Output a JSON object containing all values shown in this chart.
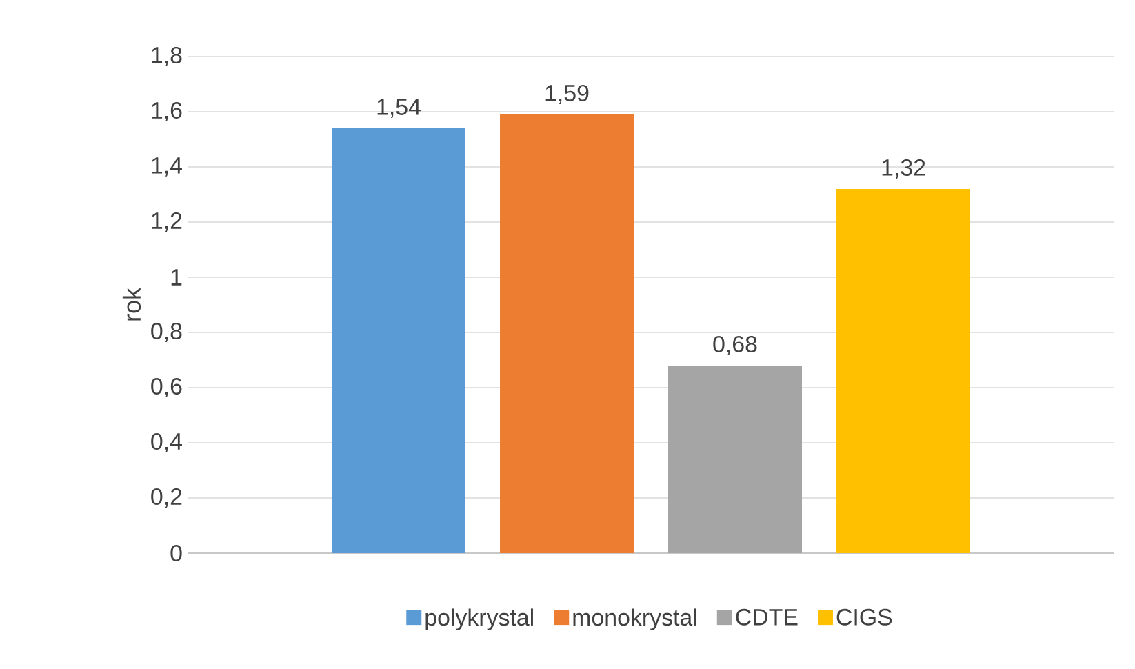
{
  "chart_data": {
    "type": "bar",
    "ylabel": "rok",
    "categories": [
      null
    ],
    "series": [
      {
        "name": "polykrystal",
        "color": "#5b9bd5",
        "values": [
          1.54
        ],
        "value_labels": [
          "1,54"
        ]
      },
      {
        "name": "monokrystal",
        "color": "#ed7d31",
        "values": [
          1.59
        ],
        "value_labels": [
          "1,59"
        ]
      },
      {
        "name": "CDTE",
        "color": "#a5a5a5",
        "values": [
          0.68
        ],
        "value_labels": [
          "0,68"
        ]
      },
      {
        "name": "CIGS",
        "color": "#ffc000",
        "values": [
          1.32
        ],
        "value_labels": [
          "1,32"
        ]
      }
    ],
    "ylim": [
      0,
      1.8
    ],
    "yticks": [
      0,
      {
        "value": 0.2,
        "label": "0,2"
      },
      {
        "value": 0.4,
        "label": "0,4"
      },
      {
        "value": 0.6,
        "label": "0,6"
      },
      {
        "value": 0.8,
        "label": "0,8"
      },
      1,
      {
        "value": 1.2,
        "label": "1,2"
      },
      {
        "value": 1.4,
        "label": "1,4"
      },
      {
        "value": 1.6,
        "label": "1,6"
      },
      {
        "value": 1.8,
        "label": "1,8"
      }
    ],
    "grid": "y",
    "legend": "bottom"
  }
}
